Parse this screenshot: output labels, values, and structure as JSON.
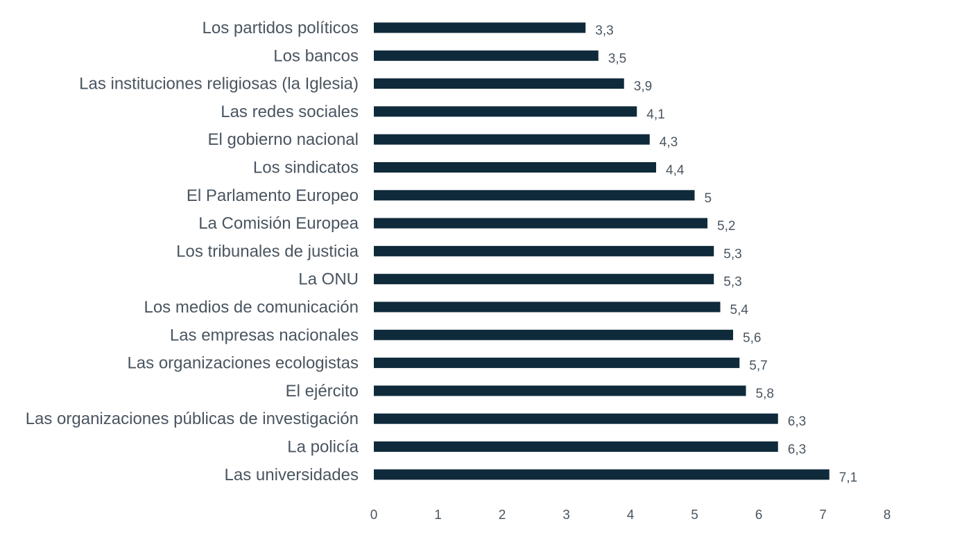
{
  "chart_data": {
    "type": "bar",
    "orientation": "horizontal",
    "categories": [
      "Los partidos políticos",
      "Los bancos",
      "Las instituciones religiosas (la Iglesia)",
      "Las redes sociales",
      "El gobierno nacional",
      "Los sindicatos",
      "El Parlamento Europeo",
      "La Comisión Europea",
      "Los tribunales de justicia",
      "La ONU",
      "Los medios de comunicación",
      "Las empresas nacionales",
      "Las organizaciones ecologistas",
      "El ejército",
      "Las organizaciones públicas de  investigación",
      "La policía",
      "Las universidades"
    ],
    "values": [
      3.3,
      3.5,
      3.9,
      4.1,
      4.3,
      4.4,
      5,
      5.2,
      5.3,
      5.3,
      5.4,
      5.6,
      5.7,
      5.8,
      6.3,
      6.3,
      7.1
    ],
    "value_labels": [
      "3,3",
      "3,5",
      "3,9",
      "4,1",
      "4,3",
      "4,4",
      "5",
      "5,2",
      "5,3",
      "5,3",
      "5,4",
      "5,6",
      "5,7",
      "5,8",
      "6,3",
      "6,3",
      "7,1"
    ],
    "xlim": [
      0,
      8
    ],
    "xticks": [
      "0",
      "1",
      "2",
      "3",
      "4",
      "5",
      "6",
      "7",
      "8"
    ],
    "grid": false,
    "bar_color": "#0f2a3a",
    "text_color": "#4a5560"
  }
}
